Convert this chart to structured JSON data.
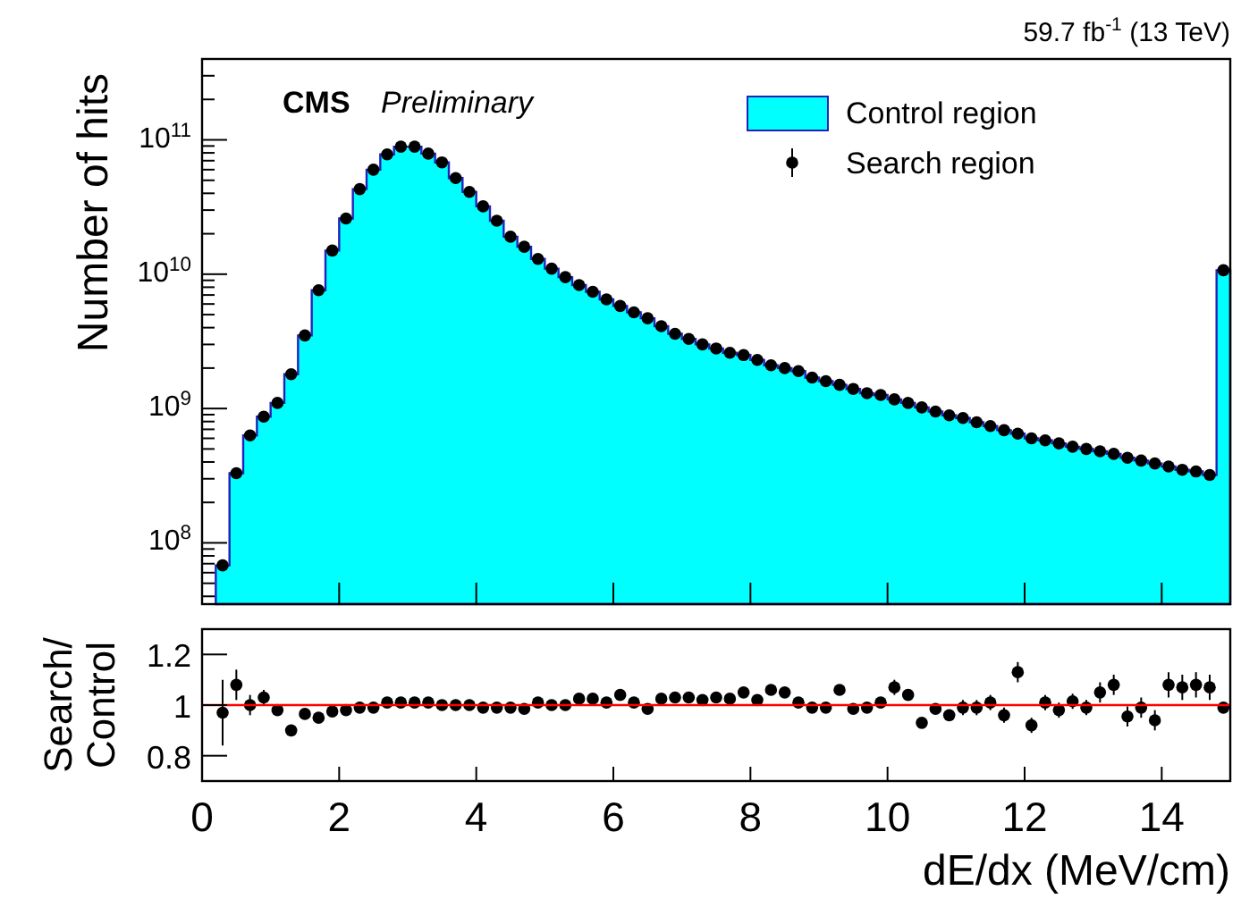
{
  "chart_data": [
    {
      "type": "histogram",
      "ylabel": "Number of hits",
      "annotations": [
        "CMS",
        "Preliminary",
        "59.7 fb$^{-1}$ (13 TeV)"
      ],
      "bins": [
        0.2,
        0.4,
        0.6,
        0.8,
        1.0,
        1.2,
        1.4,
        1.6,
        1.8,
        2.0,
        2.2,
        2.4,
        2.6,
        2.8,
        3.0,
        3.2,
        3.4,
        3.6,
        3.8,
        4.0,
        4.2,
        4.4,
        4.6,
        4.8,
        5.0,
        5.2,
        5.4,
        5.6,
        5.8,
        6.0,
        6.2,
        6.4,
        6.6,
        6.8,
        7.0,
        7.2,
        7.4,
        7.6,
        7.8,
        8.0,
        8.2,
        8.4,
        8.6,
        8.8,
        9.0,
        9.2,
        9.4,
        9.6,
        9.8,
        10.0,
        10.2,
        10.4,
        10.6,
        10.8,
        11.0,
        11.2,
        11.4,
        11.6,
        11.8,
        12.0,
        12.2,
        12.4,
        12.6,
        12.8,
        13.0,
        13.2,
        13.4,
        13.6,
        13.8,
        14.0,
        14.2,
        14.4,
        14.6,
        14.8,
        15.0
      ],
      "x": [
        0.3,
        0.5,
        0.7,
        0.9,
        1.1,
        1.3,
        1.5,
        1.7,
        1.9,
        2.1,
        2.3,
        2.5,
        2.7,
        2.9,
        3.1,
        3.3,
        3.5,
        3.7,
        3.9,
        4.1,
        4.3,
        4.5,
        4.7,
        4.9,
        5.1,
        5.3,
        5.5,
        5.7,
        5.9,
        6.1,
        6.3,
        6.5,
        6.7,
        6.9,
        7.1,
        7.3,
        7.5,
        7.7,
        7.9,
        8.1,
        8.3,
        8.5,
        8.7,
        8.9,
        9.1,
        9.3,
        9.5,
        9.7,
        9.9,
        10.1,
        10.3,
        10.5,
        10.7,
        10.9,
        11.1,
        11.3,
        11.5,
        11.7,
        11.9,
        12.1,
        12.3,
        12.5,
        12.7,
        12.9,
        13.1,
        13.3,
        13.5,
        13.7,
        13.9,
        14.1,
        14.3,
        14.5,
        14.7,
        14.9
      ],
      "series": [
        {
          "name": "Control region",
          "color": "#00ffff",
          "values": [
            68000000.0,
            330000000.0,
            630000000.0,
            870000000.0,
            1100000000.0,
            1800000000.0,
            3500000000.0,
            7600000000.0,
            15000000000.0,
            26000000000.0,
            43000000000.0,
            60000000000.0,
            78000000000.0,
            89000000000.0,
            89000000000.0,
            79000000000.0,
            68000000000.0,
            52000000000.0,
            41000000000.0,
            32000000000.0,
            25000000000.0,
            19000000000.0,
            16000000000.0,
            13000000000.0,
            11000000000.0,
            9500000000.0,
            8300000000.0,
            7400000000.0,
            6500000000.0,
            5800000000.0,
            5200000000.0,
            4700000000.0,
            4100000000.0,
            3600000000.0,
            3300000000.0,
            3000000000.0,
            2800000000.0,
            2600000000.0,
            2500000000.0,
            2300000000.0,
            2100000000.0,
            2000000000.0,
            1900000000.0,
            1700000000.0,
            1600000000.0,
            1500000000.0,
            1400000000.0,
            1300000000.0,
            1260000000.0,
            1170000000.0,
            1100000000.0,
            1020000000.0,
            950000000.0,
            890000000.0,
            850000000.0,
            790000000.0,
            740000000.0,
            690000000.0,
            650000000.0,
            600000000.0,
            580000000.0,
            550000000.0,
            520000000.0,
            500000000.0,
            480000000.0,
            460000000.0,
            430000000.0,
            410000000.0,
            390000000.0,
            370000000.0,
            350000000.0,
            340000000.0,
            320000000.0,
            10700000000.0
          ]
        },
        {
          "name": "Search region",
          "type": "scatter",
          "color": "#000000",
          "values": [
            68000000.0,
            330000000.0,
            630000000.0,
            870000000.0,
            1100000000.0,
            1800000000.0,
            3500000000.0,
            7600000000.0,
            15000000000.0,
            26000000000.0,
            43000000000.0,
            60000000000.0,
            78000000000.0,
            89000000000.0,
            89000000000.0,
            79000000000.0,
            68000000000.0,
            52000000000.0,
            41000000000.0,
            32000000000.0,
            25000000000.0,
            19000000000.0,
            16000000000.0,
            13000000000.0,
            11000000000.0,
            9500000000.0,
            8300000000.0,
            7400000000.0,
            6500000000.0,
            5800000000.0,
            5200000000.0,
            4700000000.0,
            4100000000.0,
            3600000000.0,
            3300000000.0,
            3000000000.0,
            2800000000.0,
            2600000000.0,
            2500000000.0,
            2300000000.0,
            2100000000.0,
            2000000000.0,
            1900000000.0,
            1700000000.0,
            1600000000.0,
            1500000000.0,
            1400000000.0,
            1300000000.0,
            1260000000.0,
            1170000000.0,
            1100000000.0,
            1020000000.0,
            950000000.0,
            890000000.0,
            850000000.0,
            790000000.0,
            740000000.0,
            690000000.0,
            650000000.0,
            600000000.0,
            580000000.0,
            550000000.0,
            520000000.0,
            500000000.0,
            480000000.0,
            460000000.0,
            430000000.0,
            410000000.0,
            390000000.0,
            370000000.0,
            350000000.0,
            340000000.0,
            320000000.0,
            10700000000.0
          ]
        }
      ],
      "xlim": [
        0,
        15
      ],
      "xticks": [
        0,
        2,
        4,
        6,
        8,
        10,
        12,
        14
      ],
      "log": true,
      "ylim": [
        35000000.0,
        400000000000.0
      ],
      "yticks": [
        {
          "value": 40000000.0,
          "label": null
        },
        {
          "value": 50000000.0,
          "label": null
        },
        {
          "value": 60000000.0,
          "label": null
        },
        {
          "value": 70000000.0,
          "label": null
        },
        {
          "value": 80000000.0,
          "label": null
        },
        {
          "value": 90000000.0,
          "label": null
        },
        {
          "value": 100000000.0,
          "label": "10$^{8}$"
        },
        {
          "value": 200000000.0,
          "label": null
        },
        {
          "value": 300000000.0,
          "label": null
        },
        {
          "value": 400000000.0,
          "label": null
        },
        {
          "value": 500000000.0,
          "label": null
        },
        {
          "value": 600000000.0,
          "label": null
        },
        {
          "value": 700000000.0,
          "label": null
        },
        {
          "value": 800000000.0,
          "label": null
        },
        {
          "value": 900000000.0,
          "label": null
        },
        {
          "value": 1000000000.0,
          "label": "10$^{9}$"
        },
        {
          "value": 2000000000.0,
          "label": null
        },
        {
          "value": 3000000000.0,
          "label": null
        },
        {
          "value": 4000000000.0,
          "label": null
        },
        {
          "value": 5000000000.0,
          "label": null
        },
        {
          "value": 6000000000.0,
          "label": null
        },
        {
          "value": 7000000000.0,
          "label": null
        },
        {
          "value": 8000000000.0,
          "label": null
        },
        {
          "value": 9000000000.0,
          "label": null
        },
        {
          "value": 10000000000.0,
          "label": "10$^{10}$"
        },
        {
          "value": 20000000000.0,
          "label": null
        },
        {
          "value": 30000000000.0,
          "label": null
        },
        {
          "value": 40000000000.0,
          "label": null
        },
        {
          "value": 50000000000.0,
          "label": null
        },
        {
          "value": 60000000000.0,
          "label": null
        },
        {
          "value": 70000000000.0,
          "label": null
        },
        {
          "value": 80000000000.0,
          "label": null
        },
        {
          "value": 90000000000.0,
          "label": null
        },
        {
          "value": 100000000000.0,
          "label": "10$^{11}$"
        },
        {
          "value": 200000000000.0,
          "label": null
        },
        {
          "value": 300000000000.0,
          "label": null
        },
        {
          "value": 400000000000.0,
          "label": null
        }
      ],
      "tick_labels": "y",
      "legend": "top right",
      "marker": "circle"
    },
    {
      "type": "scatter",
      "xlabel": "dE/dx (MeV/cm)",
      "ylabel": "Search/Control",
      "color": "#000000",
      "marker": "circle",
      "x": [
        0.3,
        0.5,
        0.7,
        0.9,
        1.1,
        1.3,
        1.5,
        1.7,
        1.9,
        2.1,
        2.3,
        2.5,
        2.7,
        2.9,
        3.1,
        3.3,
        3.5,
        3.7,
        3.9,
        4.1,
        4.3,
        4.5,
        4.7,
        4.9,
        5.1,
        5.3,
        5.5,
        5.7,
        5.9,
        6.1,
        6.3,
        6.5,
        6.7,
        6.9,
        7.1,
        7.3,
        7.5,
        7.7,
        7.9,
        8.1,
        8.3,
        8.5,
        8.7,
        8.9,
        9.1,
        9.3,
        9.5,
        9.7,
        9.9,
        10.1,
        10.3,
        10.5,
        10.7,
        10.9,
        11.1,
        11.3,
        11.5,
        11.7,
        11.9,
        12.1,
        12.3,
        12.5,
        12.7,
        12.9,
        13.1,
        13.3,
        13.5,
        13.7,
        13.9,
        14.1,
        14.3,
        14.5,
        14.7,
        14.9
      ],
      "values": [
        0.97,
        1.08,
        1.0,
        1.03,
        0.98,
        0.9,
        0.965,
        0.95,
        0.975,
        0.98,
        0.99,
        0.99,
        1.01,
        1.01,
        1.01,
        1.01,
        1.0,
        1.0,
        1.0,
        0.99,
        0.99,
        0.99,
        0.985,
        1.01,
        1.0,
        1.0,
        1.025,
        1.025,
        1.01,
        1.04,
        1.01,
        0.985,
        1.025,
        1.03,
        1.03,
        1.02,
        1.03,
        1.025,
        1.05,
        1.02,
        1.06,
        1.05,
        1.01,
        0.99,
        0.99,
        1.06,
        0.985,
        0.99,
        1.01,
        1.07,
        1.04,
        0.93,
        0.985,
        0.96,
        0.99,
        0.99,
        1.01,
        0.96,
        1.13,
        0.92,
        1.01,
        0.98,
        1.015,
        0.99,
        1.05,
        1.08,
        0.955,
        0.99,
        0.94,
        1.08,
        1.07,
        1.08,
        1.07,
        0.99
      ],
      "errors": [
        0.13,
        0.06,
        0.04,
        0.03,
        0.02,
        0.02,
        0.02,
        0.02,
        0.01,
        0.01,
        0.01,
        0.01,
        0.01,
        0.01,
        0.01,
        0.01,
        0.01,
        0.01,
        0.01,
        0.01,
        0.01,
        0.01,
        0.01,
        0.01,
        0.01,
        0.01,
        0.01,
        0.01,
        0.01,
        0.01,
        0.01,
        0.01,
        0.01,
        0.01,
        0.01,
        0.01,
        0.01,
        0.01,
        0.01,
        0.01,
        0.01,
        0.01,
        0.01,
        0.01,
        0.01,
        0.02,
        0.02,
        0.02,
        0.02,
        0.03,
        0.02,
        0.02,
        0.02,
        0.02,
        0.03,
        0.03,
        0.03,
        0.03,
        0.04,
        0.03,
        0.03,
        0.03,
        0.03,
        0.03,
        0.04,
        0.04,
        0.04,
        0.04,
        0.04,
        0.05,
        0.05,
        0.05,
        0.05,
        0.02
      ],
      "xlim": [
        0,
        15
      ],
      "xticks": [
        0,
        2,
        4,
        6,
        8,
        10,
        12,
        14
      ],
      "ylim": [
        0.7,
        1.3
      ],
      "yticks": [
        0.8,
        1,
        1.2
      ],
      "ref_lines": [
        {
          "axis": "y",
          "value": 1,
          "color": "#ff0000"
        }
      ]
    }
  ]
}
